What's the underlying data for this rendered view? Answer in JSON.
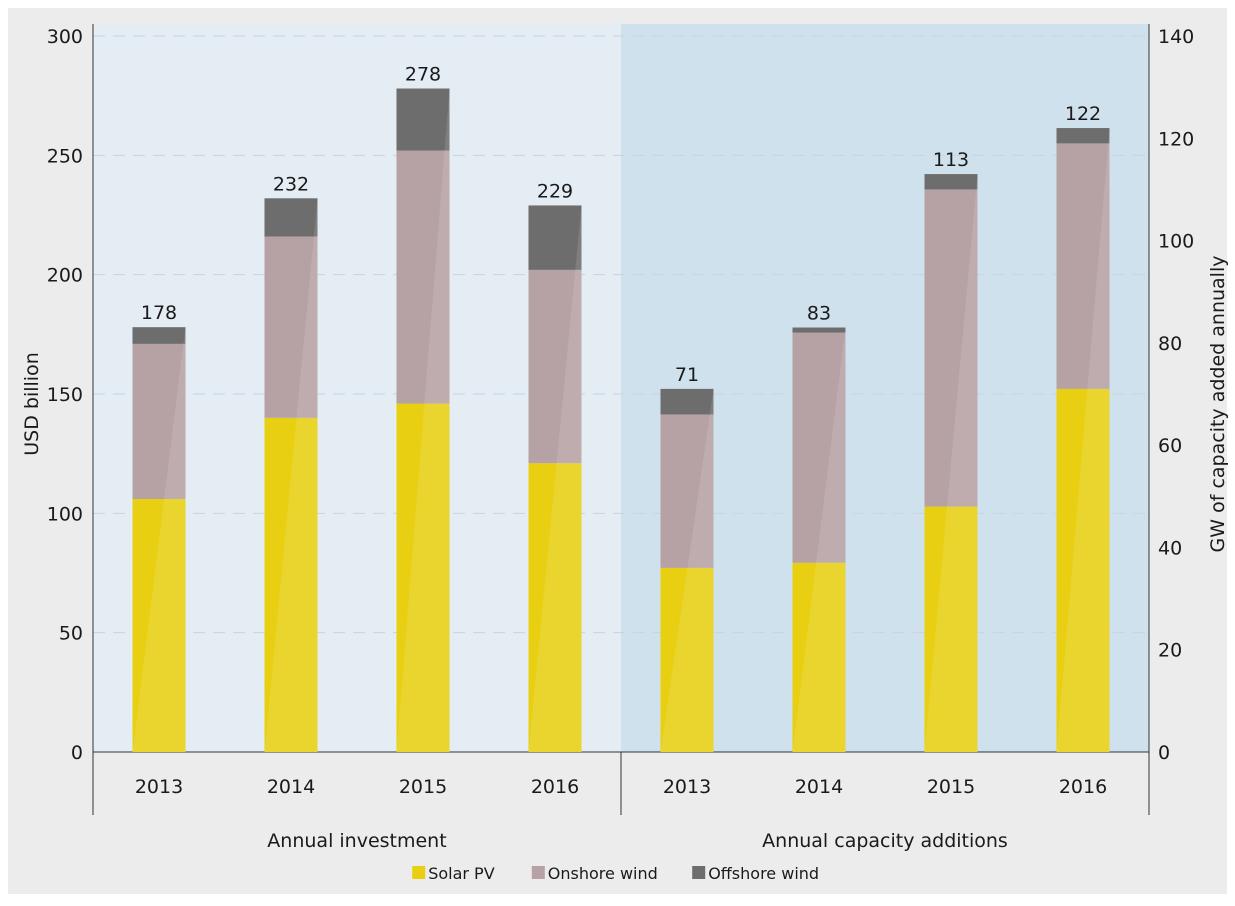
{
  "chart_data": {
    "type": "bar",
    "stacked": true,
    "groups": [
      {
        "label": "Annual investment",
        "axis": "left",
        "categories": [
          "2013",
          "2014",
          "2015",
          "2016"
        ],
        "series": [
          {
            "name": "Solar PV",
            "values": [
              106,
              140,
              146,
              121
            ]
          },
          {
            "name": "Onshore wind",
            "values": [
              65,
              76,
              106,
              81
            ]
          },
          {
            "name": "Offshore wind",
            "values": [
              7,
              16,
              26,
              27
            ]
          }
        ],
        "totals": [
          178,
          232,
          278,
          229
        ]
      },
      {
        "label": "Annual capacity additions",
        "axis": "right",
        "categories": [
          "2013",
          "2014",
          "2015",
          "2016"
        ],
        "series": [
          {
            "name": "Solar PV",
            "values": [
              36,
              37,
              48,
              71
            ]
          },
          {
            "name": "Onshore wind",
            "values": [
              30,
              45,
              62,
              48
            ]
          },
          {
            "name": "Offshore wind",
            "values": [
              5,
              1,
              3,
              3
            ]
          }
        ],
        "totals": [
          71,
          83,
          113,
          122
        ]
      }
    ],
    "y_left": {
      "label": "USD billion",
      "range": [
        0,
        300
      ],
      "ticks": [
        0,
        50,
        100,
        150,
        200,
        250,
        300
      ]
    },
    "y_right": {
      "label": "GW of capacity added annually",
      "range": [
        0,
        140
      ],
      "ticks": [
        0,
        20,
        40,
        60,
        80,
        100,
        120,
        140
      ]
    },
    "legend": {
      "position": "bottom",
      "items": [
        "Solar PV",
        "Onshore wind",
        "Offshore wind"
      ]
    },
    "grid": true,
    "colors": {
      "Solar PV": "#e8cf12",
      "Onshore wind": "#b6a1a4",
      "Offshore wind": "#6d6d6d",
      "left_panel_bg": "#e4ecf4",
      "right_panel_bg": "#cfe1ec",
      "outer_bg": "#ececec"
    }
  }
}
